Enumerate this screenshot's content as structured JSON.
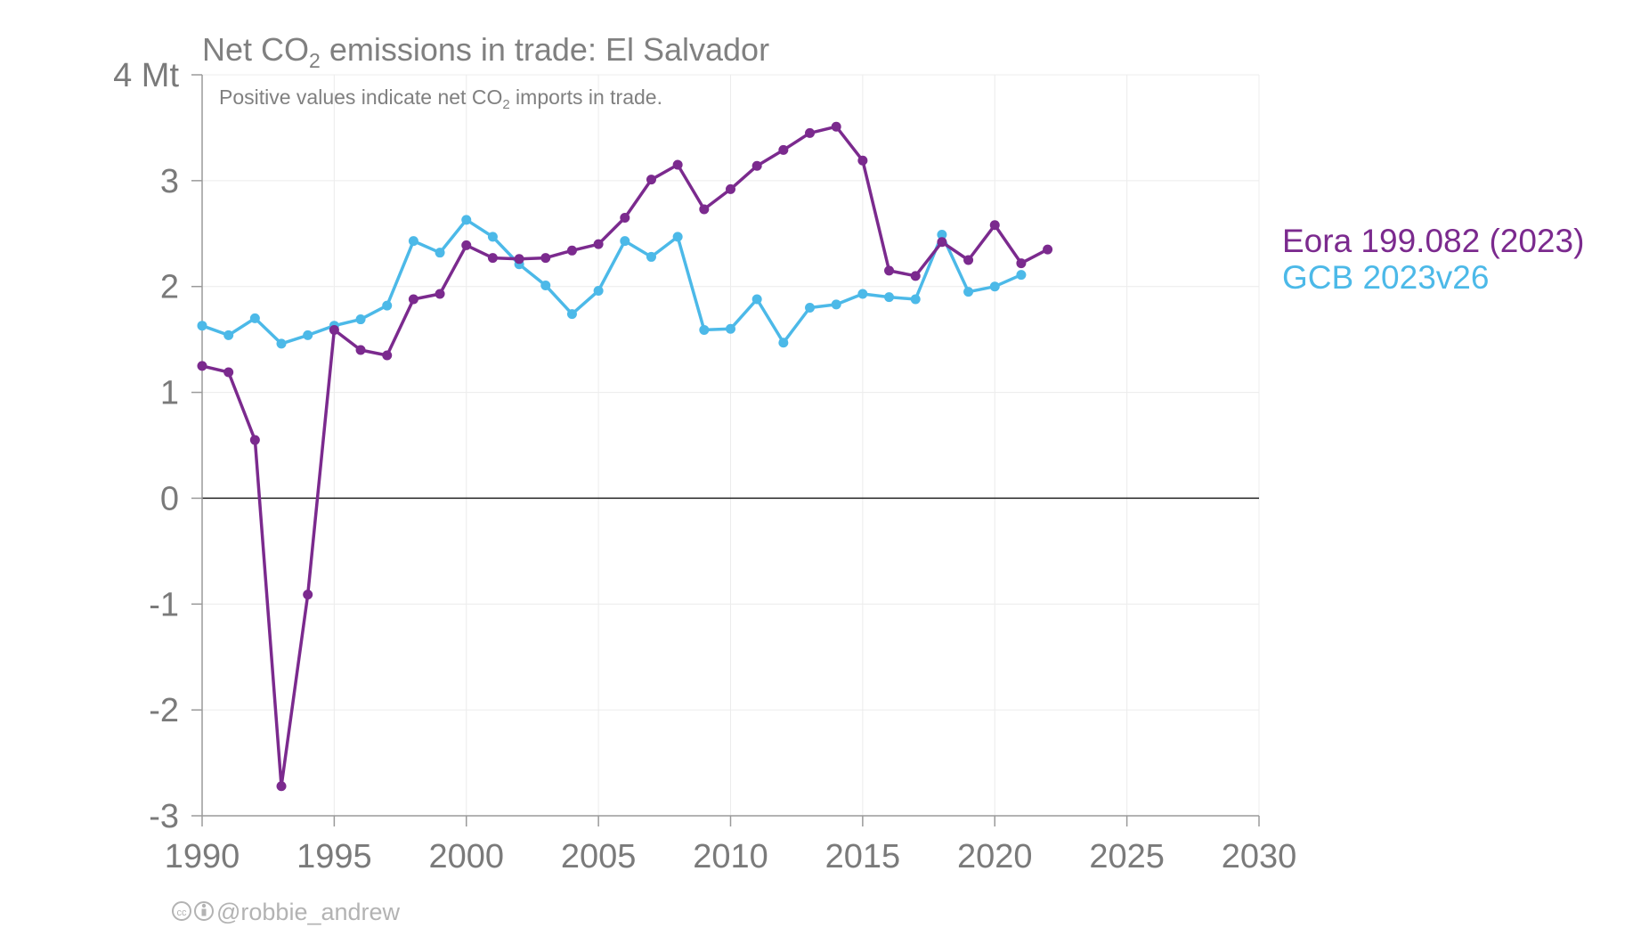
{
  "chart_data": {
    "type": "line",
    "title_prefix": "Net CO",
    "title_sub": "2",
    "title_suffix": " emissions in trade: El Salvador",
    "subtitle_prefix": "Positive values indicate net CO",
    "subtitle_sub": "2",
    "subtitle_suffix": " imports in trade.",
    "xlim": [
      1990,
      2030
    ],
    "ylim": [
      -3,
      4
    ],
    "x_ticks": [
      1990,
      1995,
      2000,
      2005,
      2010,
      2015,
      2020,
      2025,
      2030
    ],
    "y_ticks": [
      {
        "value": 4,
        "label": "4 Mt"
      },
      {
        "value": 3,
        "label": "3"
      },
      {
        "value": 2,
        "label": "2"
      },
      {
        "value": 1,
        "label": "1"
      },
      {
        "value": 0,
        "label": "0"
      },
      {
        "value": -1,
        "label": "-1"
      },
      {
        "value": -2,
        "label": "-2"
      },
      {
        "value": -3,
        "label": "-3"
      }
    ],
    "grid": true,
    "legend_placement": "right",
    "series": [
      {
        "name": "Eora 199.082 (2023)",
        "color": "#7b2a8e",
        "x": [
          1990,
          1991,
          1992,
          1993,
          1994,
          1995,
          1996,
          1997,
          1998,
          1999,
          2000,
          2001,
          2002,
          2003,
          2004,
          2005,
          2006,
          2007,
          2008,
          2009,
          2010,
          2011,
          2012,
          2013,
          2014,
          2015,
          2016,
          2017,
          2018,
          2019,
          2020,
          2021,
          2022
        ],
        "y": [
          1.25,
          1.19,
          0.55,
          -2.72,
          -0.91,
          1.59,
          1.4,
          1.35,
          1.88,
          1.93,
          2.39,
          2.27,
          2.26,
          2.27,
          2.34,
          2.4,
          2.65,
          3.01,
          3.15,
          2.73,
          2.92,
          3.14,
          3.29,
          3.45,
          3.51,
          3.19,
          2.15,
          2.1,
          2.42,
          2.25,
          2.58,
          2.22,
          2.35
        ]
      },
      {
        "name": "GCB 2023v26",
        "color": "#4cb9e8",
        "x": [
          1990,
          1991,
          1992,
          1993,
          1994,
          1995,
          1996,
          1997,
          1998,
          1999,
          2000,
          2001,
          2002,
          2003,
          2004,
          2005,
          2006,
          2007,
          2008,
          2009,
          2010,
          2011,
          2012,
          2013,
          2014,
          2015,
          2016,
          2017,
          2018,
          2019,
          2020,
          2021
        ],
        "y": [
          1.63,
          1.54,
          1.7,
          1.46,
          1.54,
          1.63,
          1.69,
          1.82,
          2.43,
          2.32,
          2.63,
          2.47,
          2.21,
          2.01,
          1.74,
          1.96,
          2.43,
          2.28,
          2.47,
          1.59,
          1.6,
          1.88,
          1.47,
          1.8,
          1.83,
          1.93,
          1.9,
          1.88,
          2.49,
          1.95,
          2.0,
          2.11
        ]
      }
    ]
  },
  "credit": {
    "icons": "cc-icon, by-icon",
    "handle": "@robbie_andrew"
  }
}
